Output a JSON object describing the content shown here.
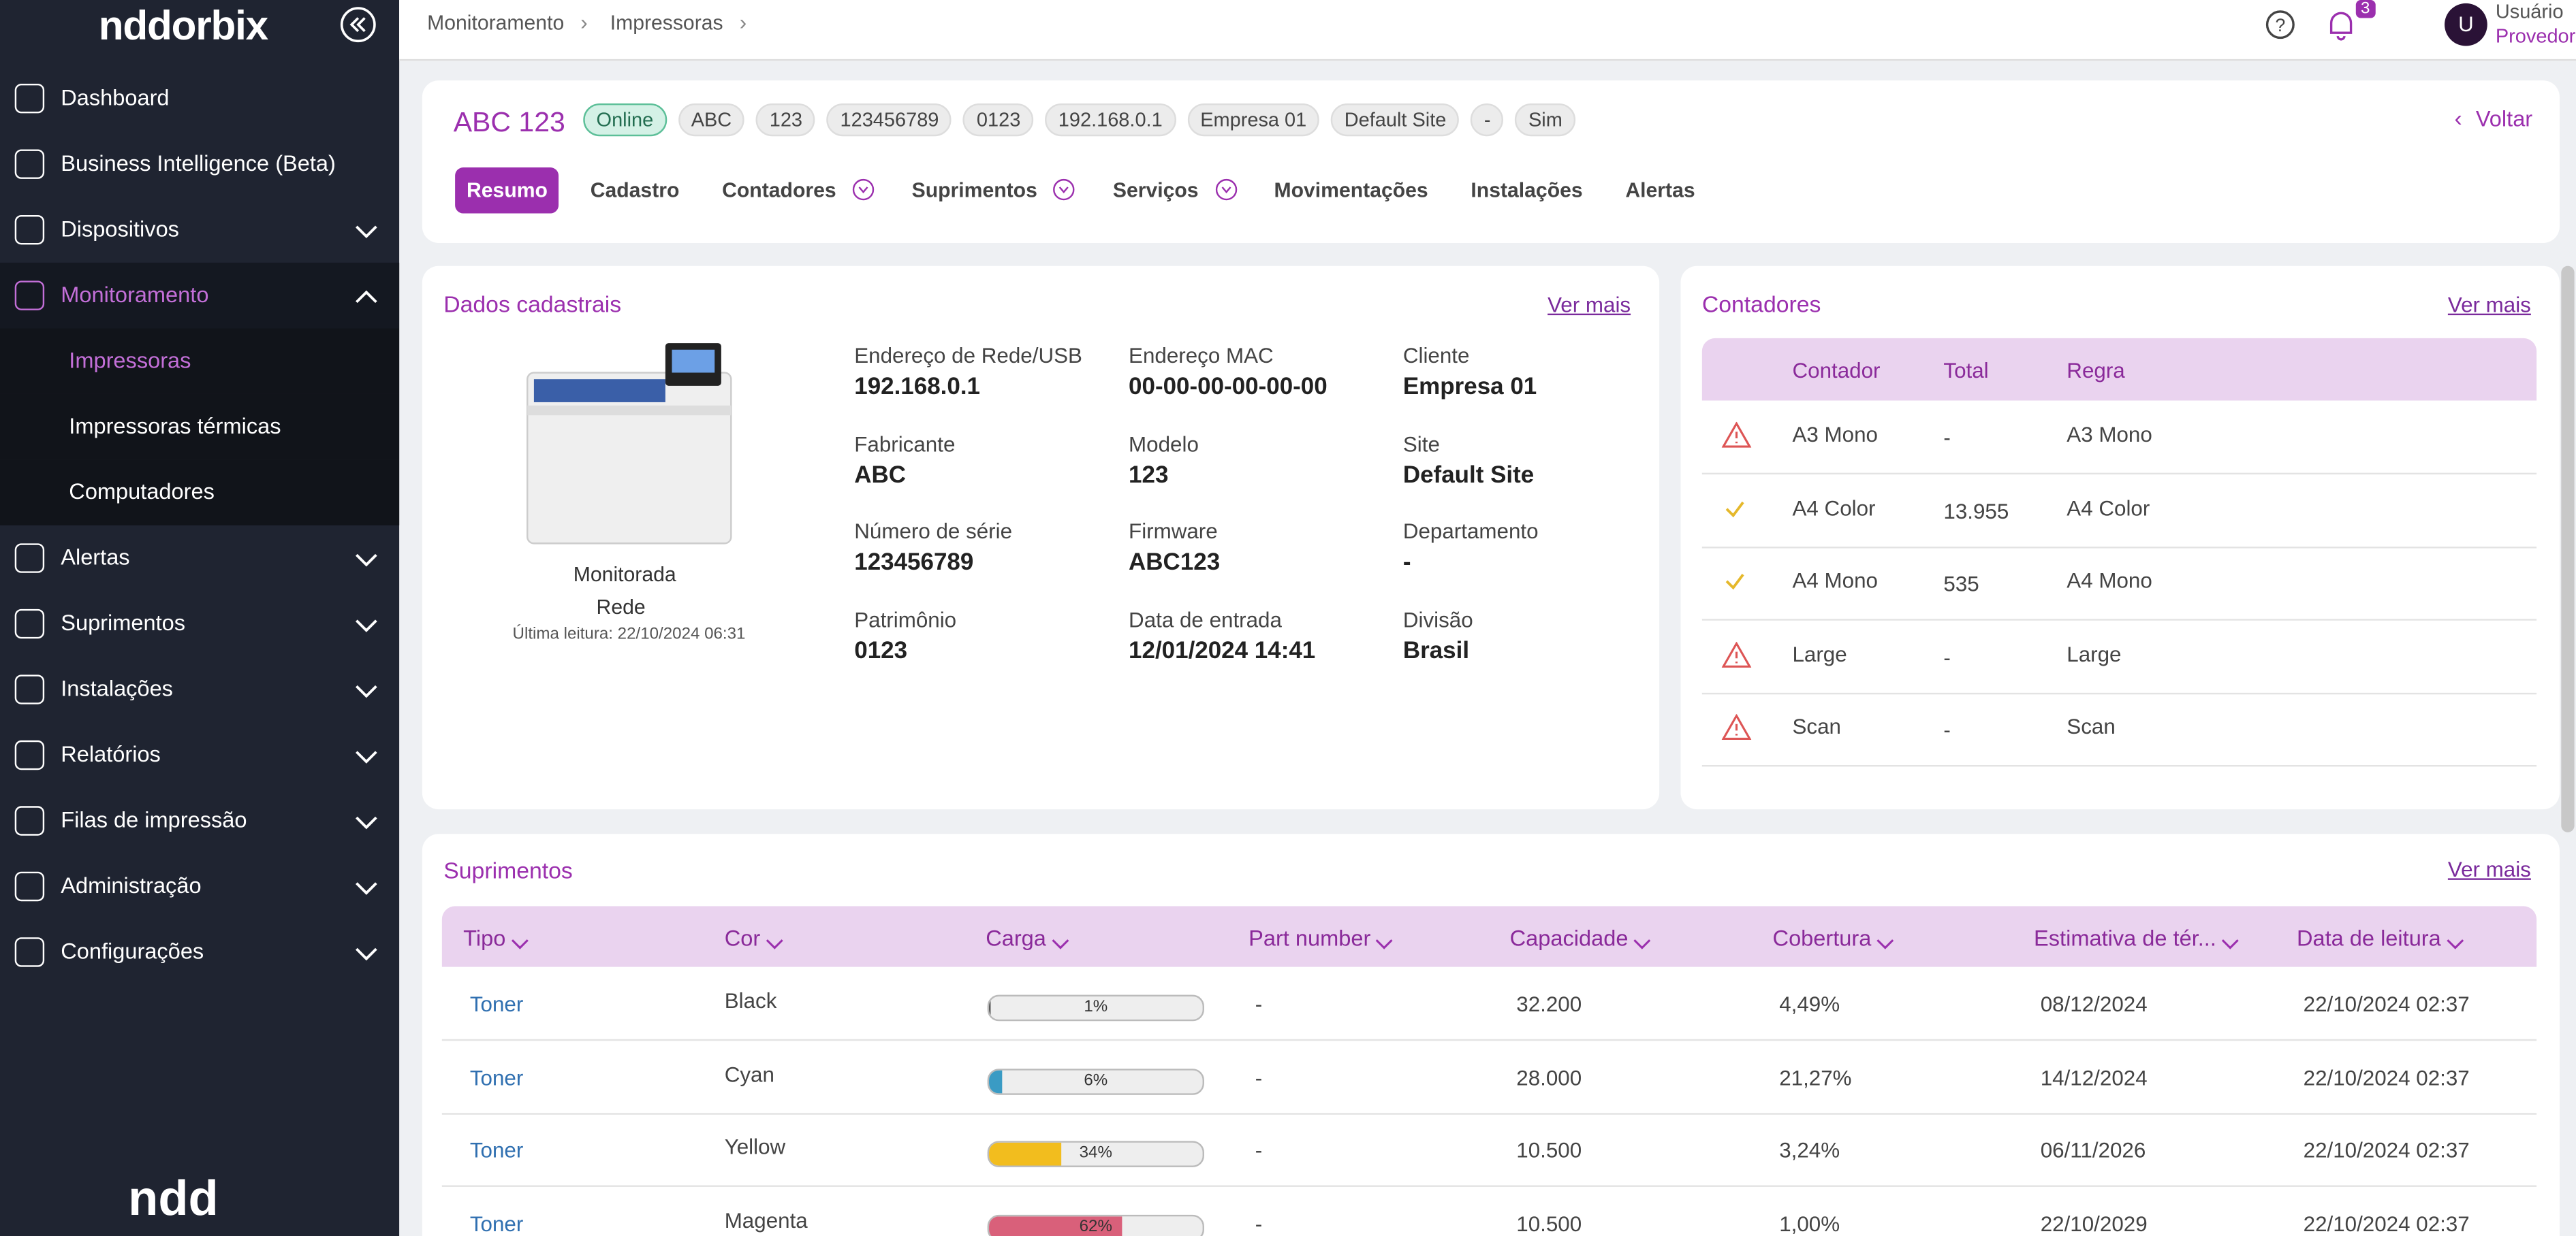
{
  "sidebar": {
    "logo": "nddorbix",
    "footer_logo": "ndd",
    "menu": [
      {
        "label": "Dashboard"
      },
      {
        "label": "Business Intelligence (Beta)"
      },
      {
        "label": "Dispositivos",
        "expandable": true
      },
      {
        "label": "Monitoramento",
        "expandable": true,
        "open": true,
        "children": [
          "Impressoras",
          "Impressoras térmicas",
          "Computadores"
        ],
        "active_child": 0
      },
      {
        "label": "Alertas",
        "expandable": true
      },
      {
        "label": "Suprimentos",
        "expandable": true
      },
      {
        "label": "Instalações",
        "expandable": true
      },
      {
        "label": "Relatórios",
        "expandable": true
      },
      {
        "label": "Filas de impressão",
        "expandable": true
      },
      {
        "label": "Administração",
        "expandable": true
      },
      {
        "label": "Configurações",
        "expandable": true
      }
    ]
  },
  "topbar": {
    "breadcrumb": [
      "Monitoramento",
      "Impressoras"
    ],
    "notifications": 3,
    "user_initial": "U",
    "user_name": "Usuário",
    "user_role": "Provedor"
  },
  "header": {
    "title": "ABC 123",
    "status": "Online",
    "tags": [
      "ABC",
      "123",
      "123456789",
      "0123",
      "192.168.0.1",
      "Empresa 01",
      "Default Site",
      "-",
      "Sim"
    ],
    "back": "Voltar",
    "tabs": [
      {
        "label": "Resumo",
        "active": true
      },
      {
        "label": "Cadastro"
      },
      {
        "label": "Contadores",
        "dropdown": true
      },
      {
        "label": "Suprimentos",
        "dropdown": true
      },
      {
        "label": "Serviços",
        "dropdown": true
      },
      {
        "label": "Movimentações"
      },
      {
        "label": "Instalações"
      },
      {
        "label": "Alertas"
      }
    ]
  },
  "dados": {
    "title": "Dados cadastrais",
    "link": "Ver mais",
    "device_status": "Monitorada",
    "connection": "Rede",
    "last_read": "Última leitura: 22/10/2024 06:31",
    "fields": [
      {
        "label": "Endereço de Rede/USB",
        "value": "192.168.0.1"
      },
      {
        "label": "Endereço MAC",
        "value": "00-00-00-00-00-00"
      },
      {
        "label": "Cliente",
        "value": "Empresa 01"
      },
      {
        "label": "Fabricante",
        "value": "ABC"
      },
      {
        "label": "Modelo",
        "value": "123"
      },
      {
        "label": "Site",
        "value": "Default Site"
      },
      {
        "label": "Número de série",
        "value": "123456789"
      },
      {
        "label": "Firmware",
        "value": "ABC123"
      },
      {
        "label": "Departamento",
        "value": "-"
      },
      {
        "label": "Patrimônio",
        "value": "0123"
      },
      {
        "label": "Data de entrada",
        "value": "12/01/2024 14:41"
      },
      {
        "label": "Divisão",
        "value": "Brasil"
      }
    ]
  },
  "contadores": {
    "title": "Contadores",
    "link": "Ver mais",
    "columns": [
      "Contador",
      "Total",
      "Regra"
    ],
    "rows": [
      {
        "status": "warning",
        "cells": [
          "A3 Mono",
          "-",
          "A3 Mono"
        ]
      },
      {
        "status": "ok",
        "cells": [
          "A4 Color",
          "13.955",
          "A4 Color"
        ]
      },
      {
        "status": "ok",
        "cells": [
          "A4 Mono",
          "535",
          "A4 Mono"
        ]
      },
      {
        "status": "warning",
        "cells": [
          "Large",
          "-",
          "Large"
        ]
      },
      {
        "status": "warning",
        "cells": [
          "Scan",
          "-",
          "Scan"
        ]
      }
    ]
  },
  "suprimentos": {
    "title": "Suprimentos",
    "link": "Ver mais",
    "columns": [
      "Tipo",
      "Cor",
      "Carga",
      "Part number",
      "Capacidade",
      "Cobertura",
      "Estimativa de tér...",
      "Data de leitura"
    ],
    "rows": [
      {
        "tipo": "Toner",
        "cor": "Black",
        "carga": 1,
        "carga_label": "1%",
        "bar_color": "#555",
        "part": "-",
        "capacidade": "32.200",
        "cobertura": "4,49%",
        "estimativa": "08/12/2024",
        "leitura": "22/10/2024 02:37"
      },
      {
        "tipo": "Toner",
        "cor": "Cyan",
        "carga": 6,
        "carga_label": "6%",
        "bar_color": "#3a9bc4",
        "part": "-",
        "capacidade": "28.000",
        "cobertura": "21,27%",
        "estimativa": "14/12/2024",
        "leitura": "22/10/2024 02:37"
      },
      {
        "tipo": "Toner",
        "cor": "Yellow",
        "carga": 34,
        "carga_label": "34%",
        "bar_color": "#f2bd1e",
        "part": "-",
        "capacidade": "10.500",
        "cobertura": "3,24%",
        "estimativa": "06/11/2026",
        "leitura": "22/10/2024 02:37"
      },
      {
        "tipo": "Toner",
        "cor": "Magenta",
        "carga": 62,
        "carga_label": "62%",
        "bar_color": "#d9607a",
        "part": "-",
        "capacidade": "10.500",
        "cobertura": "1,00%",
        "estimativa": "22/10/2029",
        "leitura": "22/10/2024 02:37"
      }
    ]
  }
}
